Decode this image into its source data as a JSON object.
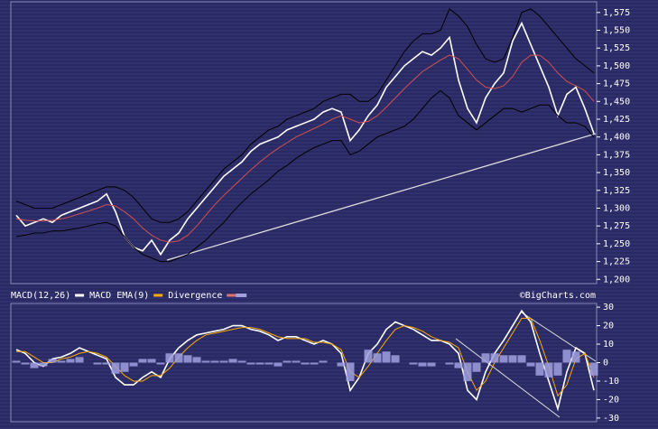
{
  "chart_data": [
    {
      "type": "line",
      "ylim": [
        1194,
        1590
      ],
      "yticks": [
        {
          "value": 1200,
          "label": "1,200"
        },
        {
          "value": 1225,
          "label": "1,225"
        },
        {
          "value": 1250,
          "label": "1,250"
        },
        {
          "value": 1275,
          "label": "1,275"
        },
        {
          "value": 1300,
          "label": "1,300"
        },
        {
          "value": 1325,
          "label": "1,325"
        },
        {
          "value": 1350,
          "label": "1,350"
        },
        {
          "value": 1375,
          "label": "1,375"
        },
        {
          "value": 1400,
          "label": "1,400"
        },
        {
          "value": 1425,
          "label": "1,425"
        },
        {
          "value": 1450,
          "label": "1,450"
        },
        {
          "value": 1475,
          "label": "1,475"
        },
        {
          "value": 1500,
          "label": "1,500"
        },
        {
          "value": 1525,
          "label": "1,525"
        },
        {
          "value": 1550,
          "label": "1,550"
        },
        {
          "value": 1575,
          "label": "1,575"
        }
      ],
      "series": [
        {
          "color": "#ffffff",
          "values": [
            1290,
            1275,
            1280,
            1285,
            1280,
            1290,
            1295,
            1300,
            1305,
            1310,
            1320,
            1295,
            1260,
            1245,
            1240,
            1255,
            1235,
            1255,
            1265,
            1285,
            1300,
            1315,
            1330,
            1345,
            1355,
            1365,
            1380,
            1390,
            1395,
            1400,
            1410,
            1415,
            1420,
            1425,
            1435,
            1440,
            1435,
            1395,
            1410,
            1430,
            1445,
            1470,
            1485,
            1500,
            1510,
            1520,
            1515,
            1525,
            1540,
            1480,
            1440,
            1420,
            1455,
            1475,
            1490,
            1535,
            1560,
            1530,
            1500,
            1470,
            1430,
            1460,
            1470,
            1440,
            1405
          ]
        },
        {
          "color": "#d05050",
          "values": [
            1285,
            1283,
            1282,
            1282,
            1283,
            1285,
            1288,
            1292,
            1296,
            1300,
            1305,
            1303,
            1295,
            1285,
            1272,
            1262,
            1255,
            1252,
            1254,
            1262,
            1275,
            1290,
            1305,
            1318,
            1330,
            1342,
            1354,
            1365,
            1375,
            1384,
            1392,
            1400,
            1406,
            1412,
            1418,
            1425,
            1430,
            1425,
            1420,
            1422,
            1430,
            1442,
            1455,
            1468,
            1480,
            1492,
            1500,
            1508,
            1515,
            1510,
            1495,
            1480,
            1470,
            1468,
            1472,
            1485,
            1505,
            1515,
            1515,
            1505,
            1490,
            1478,
            1472,
            1465,
            1450
          ]
        },
        {
          "color": "#000000",
          "values": [
            1310,
            1305,
            1300,
            1300,
            1300,
            1305,
            1310,
            1315,
            1320,
            1325,
            1330,
            1330,
            1325,
            1315,
            1300,
            1285,
            1280,
            1280,
            1285,
            1295,
            1310,
            1325,
            1340,
            1355,
            1365,
            1375,
            1390,
            1400,
            1410,
            1415,
            1425,
            1430,
            1435,
            1440,
            1450,
            1455,
            1460,
            1460,
            1450,
            1450,
            1460,
            1480,
            1500,
            1520,
            1535,
            1545,
            1545,
            1550,
            1580,
            1570,
            1555,
            1530,
            1510,
            1505,
            1510,
            1540,
            1575,
            1580,
            1570,
            1555,
            1540,
            1525,
            1510,
            1500,
            1490
          ]
        },
        {
          "color": "#000000",
          "values": [
            1260,
            1262,
            1265,
            1265,
            1268,
            1268,
            1270,
            1272,
            1275,
            1278,
            1280,
            1275,
            1260,
            1245,
            1235,
            1230,
            1225,
            1225,
            1230,
            1235,
            1245,
            1255,
            1268,
            1280,
            1295,
            1308,
            1320,
            1330,
            1340,
            1352,
            1360,
            1370,
            1378,
            1385,
            1390,
            1395,
            1395,
            1375,
            1380,
            1390,
            1400,
            1405,
            1410,
            1415,
            1425,
            1440,
            1455,
            1465,
            1455,
            1430,
            1420,
            1410,
            1420,
            1430,
            1440,
            1440,
            1435,
            1440,
            1445,
            1445,
            1430,
            1420,
            1420,
            1415,
            1400
          ]
        }
      ]
    },
    {
      "type": "line",
      "credit": "©BigCharts.com",
      "ylim": [
        -32,
        32
      ],
      "yticks": [
        30,
        20,
        10,
        0,
        -10,
        -20,
        -30
      ],
      "series": [
        {
          "name": "MACD(12,26)",
          "color": "#ffffff",
          "values": [
            7,
            5,
            0,
            -2,
            2,
            3,
            5,
            8,
            6,
            4,
            2,
            -8,
            -12,
            -12,
            -8,
            -5,
            -8,
            2,
            8,
            12,
            15,
            16,
            17,
            18,
            20,
            20,
            18,
            17,
            15,
            12,
            14,
            14,
            12,
            10,
            12,
            10,
            5,
            -15,
            -8,
            5,
            10,
            18,
            22,
            20,
            18,
            15,
            12,
            12,
            10,
            5,
            -15,
            -20,
            -5,
            5,
            12,
            20,
            28,
            22,
            5,
            -10,
            -25,
            -5,
            8,
            5,
            -15
          ]
        },
        {
          "name": "MACD EMA(9)",
          "color": "#ffaa00",
          "values": [
            6,
            6,
            3,
            0,
            0,
            2,
            3,
            5,
            6,
            5,
            3,
            -2,
            -7,
            -10,
            -10,
            -7,
            -7,
            -3,
            3,
            8,
            12,
            15,
            16,
            17,
            18,
            19,
            19,
            18,
            16,
            14,
            13,
            13,
            13,
            11,
            11,
            10,
            7,
            -5,
            -8,
            -2,
            5,
            12,
            18,
            20,
            19,
            17,
            14,
            12,
            11,
            8,
            -5,
            -15,
            -10,
            0,
            8,
            16,
            24,
            24,
            12,
            -2,
            -18,
            -12,
            2,
            5,
            -8
          ]
        },
        {
          "name": "Divergence",
          "color": "#e07070",
          "values": []
        },
        {
          "name": "",
          "color": "#a0a0e0",
          "kind": "bar",
          "values": [
            1,
            -1,
            -3,
            -2,
            2,
            1,
            2,
            3,
            0,
            -1,
            -1,
            -6,
            -5,
            -2,
            2,
            2,
            -1,
            5,
            5,
            4,
            3,
            1,
            1,
            1,
            2,
            1,
            -1,
            -1,
            -1,
            -2,
            1,
            1,
            -1,
            -1,
            1,
            0,
            -2,
            -10,
            0,
            7,
            5,
            6,
            4,
            0,
            -1,
            -2,
            -2,
            0,
            -1,
            -3,
            -10,
            -5,
            5,
            5,
            4,
            4,
            4,
            -2,
            -7,
            -8,
            -7,
            7,
            6,
            0,
            -7
          ]
        }
      ]
    }
  ]
}
